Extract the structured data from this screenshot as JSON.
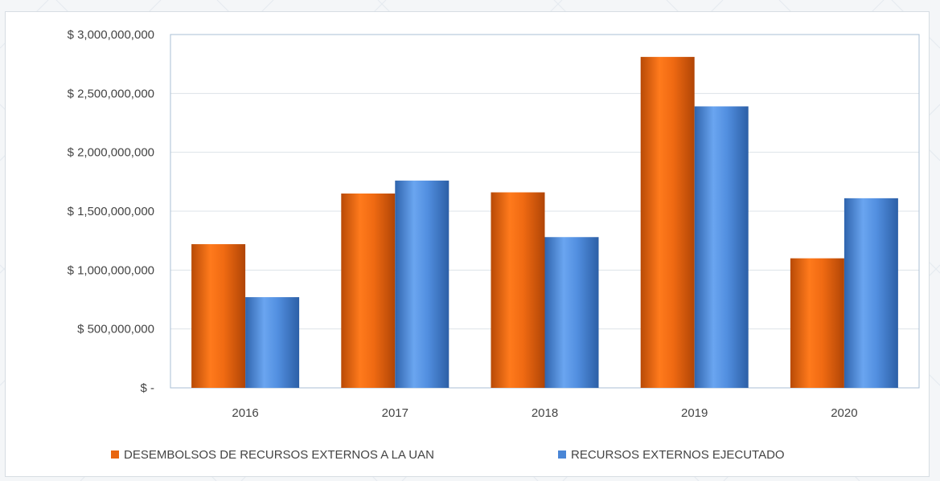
{
  "chart_data": {
    "type": "bar",
    "categories": [
      "2016",
      "2017",
      "2018",
      "2019",
      "2020"
    ],
    "series": [
      {
        "name": "DESEMBOLSOS DE RECURSOS EXTERNOS  A LA UAN",
        "color": "#e8650f",
        "values": [
          1220000000,
          1650000000,
          1660000000,
          2810000000,
          1100000000
        ]
      },
      {
        "name": "RECURSOS EXTERNOS EJECUTADO",
        "color": "#4a86d6",
        "values": [
          770000000,
          1760000000,
          1280000000,
          2390000000,
          1610000000
        ]
      }
    ],
    "yticks": [
      0,
      500000000,
      1000000000,
      1500000000,
      2000000000,
      2500000000,
      3000000000
    ],
    "ytick_labels": [
      "$ -",
      "$ 500,000,000",
      "$ 1,000,000,000",
      "$ 1,500,000,000",
      "$ 2,000,000,000",
      "$ 2,500,000,000",
      "$ 3,000,000,000"
    ],
    "ylim": [
      0,
      3000000000
    ],
    "grid": true,
    "legend_position": "bottom",
    "title": "",
    "xlabel": "",
    "ylabel": ""
  }
}
